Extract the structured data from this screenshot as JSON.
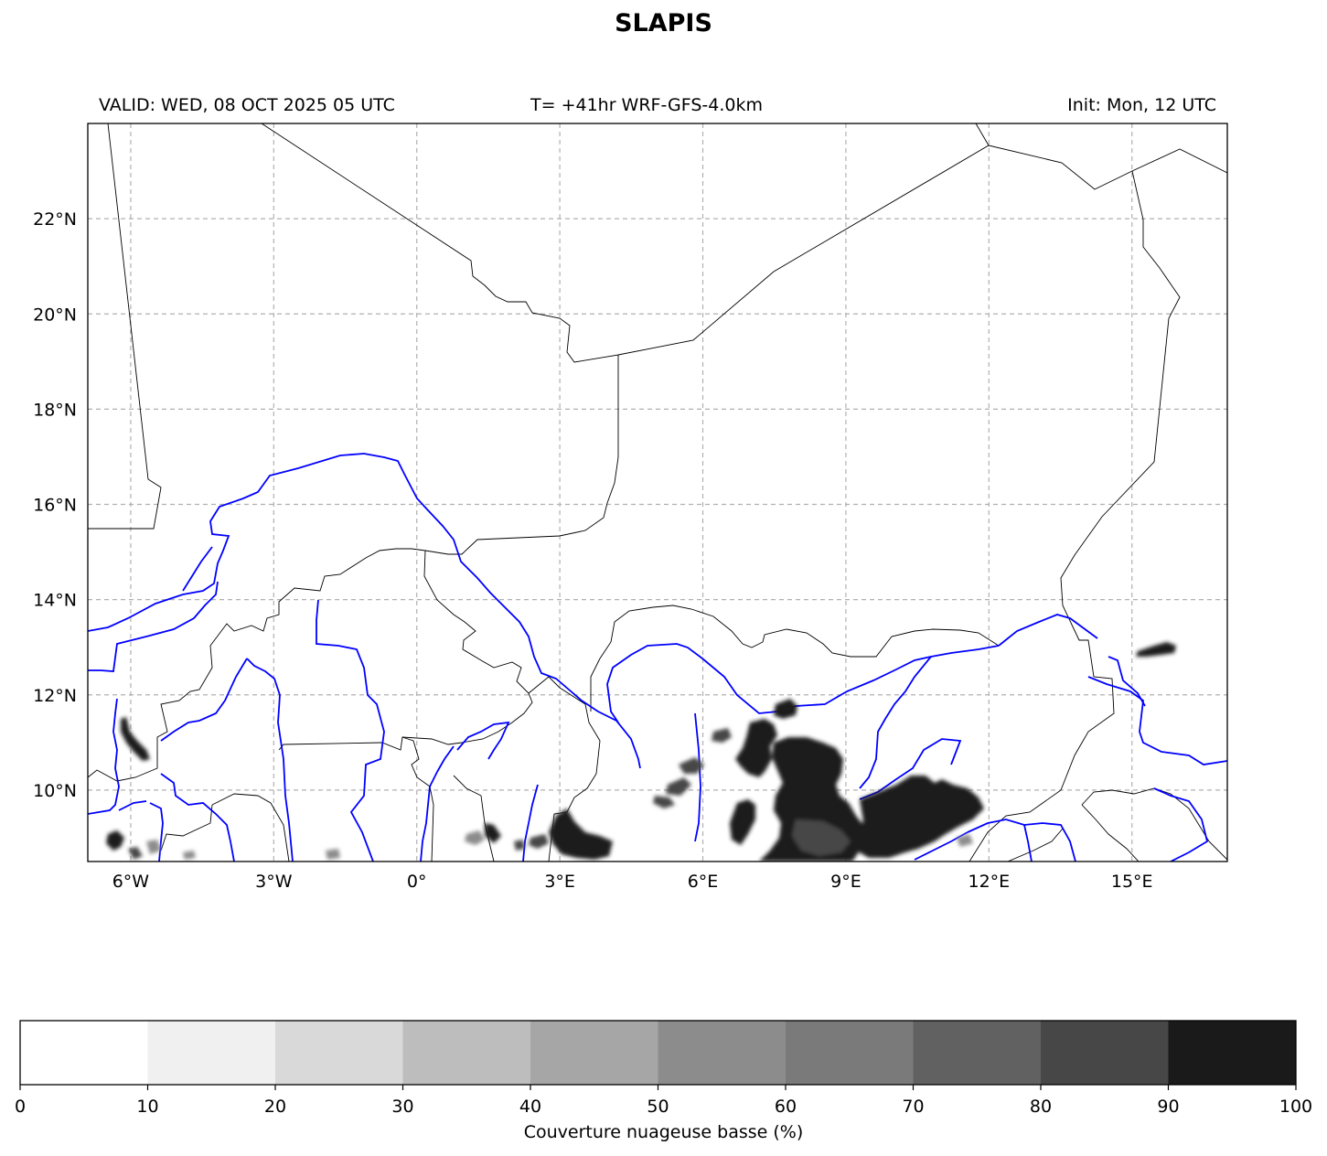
{
  "title": "SLAPIS",
  "header": {
    "valid": "VALID: WED, 08 OCT 2025 05 UTC",
    "run": "T= +41hr WRF-GFS-4.0km",
    "init": "Init: Mon, 12 UTC"
  },
  "map": {
    "lon_range": [
      -6.9,
      17.0
    ],
    "lat_range": [
      8.5,
      24.0
    ],
    "lon_ticks": [
      -6,
      -3,
      0,
      3,
      6,
      9,
      12,
      15
    ],
    "lon_tick_labels": [
      "6°W",
      "3°W",
      "0°",
      "3°E",
      "6°E",
      "9°E",
      "12°E",
      "15°E"
    ],
    "lat_ticks": [
      10,
      12,
      14,
      16,
      18,
      20,
      22
    ],
    "lat_tick_labels": [
      "10°N",
      "12°N",
      "14°N",
      "16°N",
      "18°N",
      "20°N",
      "22°N"
    ],
    "gridlines": true,
    "colors": {
      "borders": "#000000",
      "rivers": "#0000ff",
      "grid": "#b0b0b0"
    }
  },
  "colorbar": {
    "label": "Couverture nuageuse basse (%)",
    "levels": [
      0,
      10,
      20,
      30,
      40,
      50,
      60,
      70,
      80,
      90,
      100
    ],
    "colors": [
      "#ffffff",
      "#f0f0f0",
      "#d9d9d9",
      "#bdbdbd",
      "#a6a6a6",
      "#8c8c8c",
      "#7a7a7a",
      "#616161",
      "#474747",
      "#1a1a1a"
    ]
  }
}
